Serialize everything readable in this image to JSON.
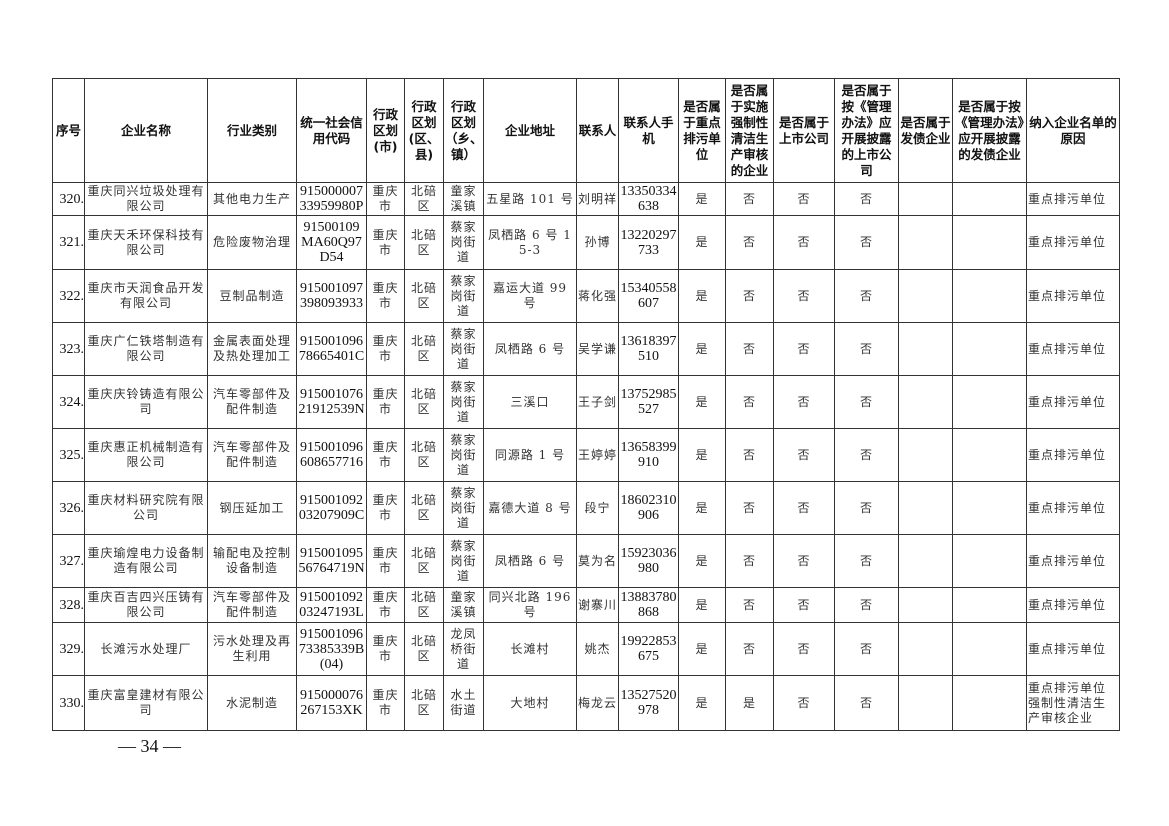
{
  "table": {
    "headers": [
      "序号",
      "企业名称",
      "行业类别",
      "统一社会信用代码",
      "行政区划(市)",
      "行政区划(区、县)",
      "行政区划（乡、镇）",
      "企业地址",
      "联系人",
      "联系人手机",
      "是否属于重点排污单位",
      "是否属于实施强制性清洁生产审核的企业",
      "是否属于上市公司",
      "是否属于按《管理办法》应开展披露的上市公司",
      "是否属于发债企业",
      "是否属于按《管理办法》应开展披露的发债企业",
      "纳入企业名单的原因"
    ],
    "rows": [
      [
        "320.",
        "重庆同兴垃圾处理有限公司",
        "其他电力生产",
        "91500000733959980P",
        "重庆市",
        "北碚区",
        "童家溪镇",
        "五星路 101 号",
        "刘明祥",
        "13350334638",
        "是",
        "否",
        "否",
        "否",
        "",
        "",
        "重点排污单位"
      ],
      [
        "321.",
        "重庆天禾环保科技有限公司",
        "危险废物治理",
        "91500109MA60Q97D54",
        "重庆市",
        "北碚区",
        "蔡家岗街道",
        "凤栖路 6 号 15-3",
        "孙博",
        "13220297733",
        "是",
        "否",
        "否",
        "否",
        "",
        "",
        "重点排污单位"
      ],
      [
        "322.",
        "重庆市天润食品开发有限公司",
        "豆制品制造",
        "915001097398093933",
        "重庆市",
        "北碚区",
        "蔡家岗街道",
        "嘉运大道 99 号",
        "蒋化强",
        "15340558607",
        "是",
        "否",
        "否",
        "否",
        "",
        "",
        "重点排污单位"
      ],
      [
        "323.",
        "重庆广仁铁塔制造有限公司",
        "金属表面处理及热处理加工",
        "91500109678665401C",
        "重庆市",
        "北碚区",
        "蔡家岗街道",
        "凤栖路 6 号",
        "吴学谦",
        "13618397510",
        "是",
        "否",
        "否",
        "否",
        "",
        "",
        "重点排污单位"
      ],
      [
        "324.",
        "重庆庆铃铸造有限公司",
        "汽车零部件及配件制造",
        "91500107621912539N",
        "重庆市",
        "北碚区",
        "蔡家岗街道",
        "三溪口",
        "王子剑",
        "13752985527",
        "是",
        "否",
        "否",
        "否",
        "",
        "",
        "重点排污单位"
      ],
      [
        "325.",
        "重庆惠正机械制造有限公司",
        "汽车零部件及配件制造",
        "915001096608657716",
        "重庆市",
        "北碚区",
        "蔡家岗街道",
        "同源路 1 号",
        "王婷婷",
        "13658399910",
        "是",
        "否",
        "否",
        "否",
        "",
        "",
        "重点排污单位"
      ],
      [
        "326.",
        "重庆材料研究院有限公司",
        "钢压延加工",
        "91500109203207909C",
        "重庆市",
        "北碚区",
        "蔡家岗街道",
        "嘉德大道 8 号",
        "段宁",
        "18602310906",
        "是",
        "否",
        "否",
        "否",
        "",
        "",
        "重点排污单位"
      ],
      [
        "327.",
        "重庆瑜煌电力设备制造有限公司",
        "输配电及控制设备制造",
        "91500109556764719N",
        "重庆市",
        "北碚区",
        "蔡家岗街道",
        "凤栖路 6 号",
        "莫为名",
        "15923036980",
        "是",
        "否",
        "否",
        "否",
        "",
        "",
        "重点排污单位"
      ],
      [
        "328.",
        "重庆百吉四兴压铸有限公司",
        "汽车零部件及配件制造",
        "91500109203247193L",
        "重庆市",
        "北碚区",
        "童家溪镇",
        "同兴北路 196 号",
        "谢寨川",
        "13883780868",
        "是",
        "否",
        "否",
        "否",
        "",
        "",
        "重点排污单位"
      ],
      [
        "329.",
        "长滩污水处理厂",
        "污水处理及再生利用",
        "91500109673385339B(04)",
        "重庆市",
        "北碚区",
        "龙凤桥街道",
        "长滩村",
        "姚杰",
        "19922853675",
        "是",
        "否",
        "否",
        "否",
        "",
        "",
        "重点排污单位"
      ],
      [
        "330.",
        "重庆富皇建材有限公司",
        "水泥制造",
        "915000076267153XK",
        "重庆市",
        "北碚区",
        "水土街道",
        "大地村",
        "梅龙云",
        "13527520978",
        "是",
        "是",
        "否",
        "否",
        "",
        "",
        "重点排污单位强制性清洁生产审核企业"
      ]
    ]
  },
  "footer": {
    "page_number": "— 34 —"
  }
}
